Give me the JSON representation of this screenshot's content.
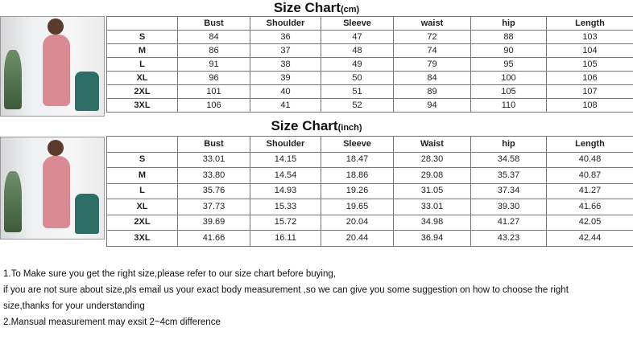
{
  "cm_chart": {
    "title": "Size Chart",
    "unit": "(cm)",
    "headers": [
      "",
      "Bust",
      "Shoulder",
      "Sleeve",
      "waist",
      "hip",
      "Length"
    ],
    "rows": [
      [
        "S",
        "84",
        "36",
        "47",
        "72",
        "88",
        "103"
      ],
      [
        "M",
        "86",
        "37",
        "48",
        "74",
        "90",
        "104"
      ],
      [
        "L",
        "91",
        "38",
        "49",
        "79",
        "95",
        "105"
      ],
      [
        "XL",
        "96",
        "39",
        "50",
        "84",
        "100",
        "106"
      ],
      [
        "2XL",
        "101",
        "40",
        "51",
        "89",
        "105",
        "107"
      ],
      [
        "3XL",
        "106",
        "41",
        "52",
        "94",
        "110",
        "108"
      ]
    ]
  },
  "inch_chart": {
    "title": "Size Chart",
    "unit": "(inch)",
    "headers": [
      "",
      "Bust",
      "Shoulder",
      "Sleeve",
      "Waist",
      "hip",
      "Length"
    ],
    "rows": [
      [
        "S",
        "33.01",
        "14.15",
        "18.47",
        "28.30",
        "34.58",
        "40.48"
      ],
      [
        "M",
        "33.80",
        "14.54",
        "18.86",
        "29.08",
        "35.37",
        "40.87"
      ],
      [
        "L",
        "35.76",
        "14.93",
        "19.26",
        "31.05",
        "37.34",
        "41.27"
      ],
      [
        "XL",
        "37.73",
        "15.33",
        "19.65",
        "33.01",
        "39.30",
        "41.66"
      ],
      [
        "2XL",
        "39.69",
        "15.72",
        "20.04",
        "34.98",
        "41.27",
        "42.05"
      ],
      [
        "3XL",
        "41.66",
        "16.11",
        "20.44",
        "36.94",
        "43.23",
        "42.44"
      ]
    ]
  },
  "notes": [
    "1.To Make sure you get the right size,please refer to our size chart before buying,",
    "if you are not sure about size,pls email us your exact body measurement ,so we can give you some suggestion on how to choose the right",
    "size,thanks for your understanding",
    "2.Mansual measurement may exsit 2~4cm difference"
  ]
}
